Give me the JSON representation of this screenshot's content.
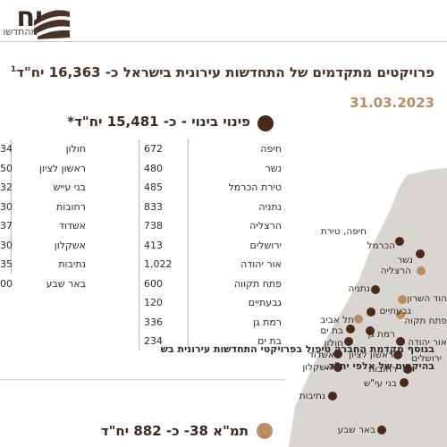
{
  "header": {
    "brand_main": "יח",
    "brand_sub": "מהחדשו"
  },
  "title": {
    "main": "פרויקטים מתקדמים של התחדשות עירונית בישראל כ- 16,363 יח\"ד",
    "footnote_mark": "1",
    "date": "31.03.2023"
  },
  "section1": {
    "title": "פינוי בינוי - כ- 15,481 יח\"ד*",
    "right_column": [
      {
        "city": "חיפה",
        "units": "672"
      },
      {
        "city": "נשר",
        "units": "480"
      },
      {
        "city": "טירת הכרמל",
        "units": "485"
      },
      {
        "city": "נתניה",
        "units": "833"
      },
      {
        "city": "הרצליה",
        "units": "738"
      },
      {
        "city": "ירושלים",
        "units": "413"
      },
      {
        "city": "אור יהודה",
        "units": "1,022"
      },
      {
        "city": "פתח תקווה",
        "units": "600"
      },
      {
        "city": "גבעתיים",
        "units": "120"
      },
      {
        "city": "רמת גן",
        "units": "336"
      },
      {
        "city": "בת ים",
        "units": "234"
      }
    ],
    "left_column": [
      {
        "city": "חולון",
        "units": "34"
      },
      {
        "city": "ראשון לציון",
        "units": "50"
      },
      {
        "city": "בני עייש",
        "units": "32"
      },
      {
        "city": "רחובות",
        "units": "30"
      },
      {
        "city": "אשדוד",
        "units": "37"
      },
      {
        "city": "אשקלון",
        "units": "30"
      },
      {
        "city": "נתיבות",
        "units": "35"
      },
      {
        "city": "באר שבע",
        "units": "00"
      }
    ],
    "note_line1": "בנוסף מקדמת החברה טיפול בפרויקטי התחדשות עירונית בש",
    "note_line2": "בהיקפים של אלפי יח\"ד."
  },
  "section2": {
    "title": "תמ\"א 38- כ- 882 יח\"ד"
  },
  "colors": {
    "dark_brown": "#4a2a1c",
    "gold": "#b88e62",
    "map_land": "#d9d6d2"
  },
  "map": {
    "labels": {
      "haifa": "חיפה, טירת",
      "carmel": "הכרמל",
      "nesher": "נשר",
      "herzliya": "הרצליה",
      "netanya": "נתניה",
      "hod_hasharon": "הוד השרון",
      "givatayim": "גבעתיים",
      "petah_tikva": "פתח תקוה",
      "tel_aviv": "תל אביב",
      "bat_yam": "בת ים",
      "ramat_gan": "רמת גן",
      "holon": "חולון",
      "or_yehuda": "אור יהודה",
      "ashdod": "אשדוד",
      "rishon": "ראשון לציון",
      "jerusalem": "ירושלים",
      "ashkelon": "אשקלון",
      "rehovot": "רחובות",
      "bnei_ayish": "בני עי\"ש",
      "netivot": "נתיבות",
      "beer_sheva": "באר שבע"
    }
  }
}
